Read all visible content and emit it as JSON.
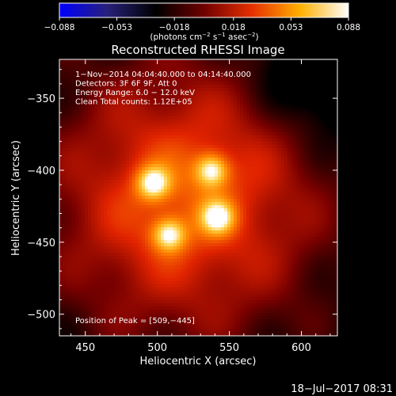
{
  "colorbar": {
    "ticks": [
      "−0.088",
      "−0.053",
      "−0.018",
      "0.018",
      "0.053",
      "0.088"
    ],
    "tick_values": [
      -0.088,
      -0.053,
      -0.018,
      0.018,
      0.053,
      0.088
    ],
    "unit_text": "(photons cm",
    "unit_sup1": "−2",
    "unit_mid": " s",
    "unit_sup2": "−1",
    "unit_mid2": " asec",
    "unit_sup3": "−2",
    "unit_end": ")",
    "colors": [
      "#0000ff",
      "#28207a",
      "#000000",
      "#700000",
      "#e63000",
      "#ffb000",
      "#ffffff"
    ]
  },
  "chart_data": {
    "type": "heatmap",
    "title": "Reconstructed RHESSI Image",
    "xlabel": "Heliocentric X (arcsec)",
    "ylabel": "Heliocentric Y (arcsec)",
    "xlim": [
      432,
      625
    ],
    "ylim": [
      -515,
      -323
    ],
    "x_ticks": [
      "450",
      "500",
      "550",
      "600"
    ],
    "x_tick_values": [
      450,
      500,
      550,
      600
    ],
    "y_ticks": [
      "−350",
      "−400",
      "−450",
      "−500"
    ],
    "y_tick_values": [
      -350,
      -400,
      -450,
      -500
    ],
    "info_lines": [
      " 1−Nov−2014 04:04:40.000 to 04:14:40.000",
      "Detectors: 3F 6F 9F, Att 0",
      "Energy Range: 6.0 − 12.0 keV",
      "Clean    Total counts: 1.12E+05"
    ],
    "peak_text": "Position of Peak = [509,−445]",
    "sources": [
      {
        "x": 497,
        "y": -409,
        "peak": 1.0
      },
      {
        "x": 538,
        "y": -400,
        "peak": 1.0
      },
      {
        "x": 508,
        "y": -445,
        "peak": 1.0
      },
      {
        "x": 542,
        "y": -433,
        "peak": 0.95
      }
    ],
    "background": {
      "x": 520,
      "y": -420,
      "level": 0.62
    }
  },
  "footer": {
    "timestamp": "18−Jul−2017 08:31"
  }
}
